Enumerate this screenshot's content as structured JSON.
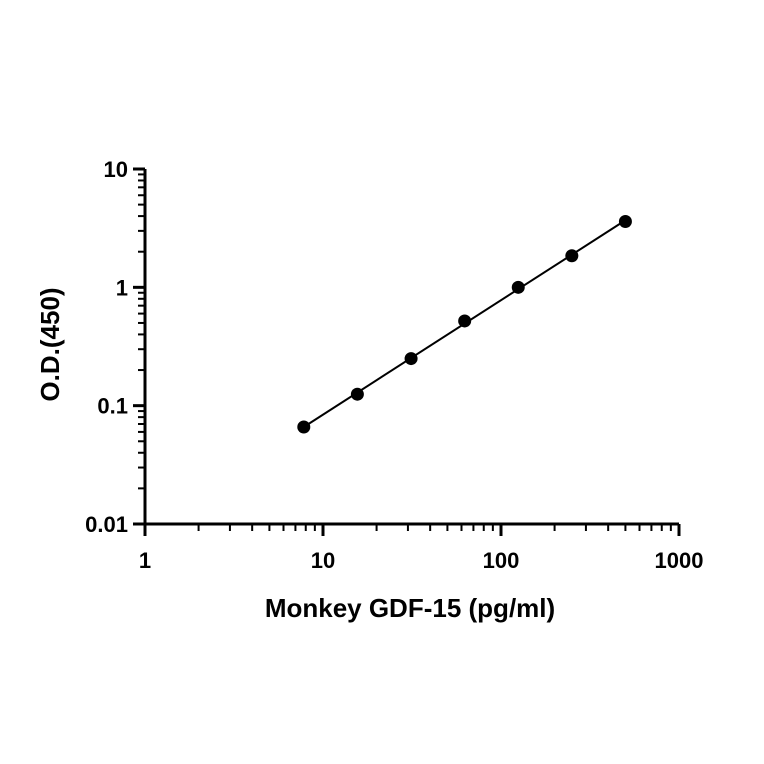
{
  "chart_data": {
    "type": "scatter",
    "title": "",
    "xlabel": "Monkey GDF-15 (pg/ml)",
    "ylabel": "O.D.(450)",
    "x_scale": "log",
    "y_scale": "log",
    "xlim": [
      1,
      1000
    ],
    "ylim": [
      0.01,
      10
    ],
    "x_ticks": [
      1,
      10,
      100,
      1000
    ],
    "x_tick_labels": [
      "1",
      "10",
      "100",
      "1000"
    ],
    "y_ticks": [
      0.01,
      0.1,
      1,
      10
    ],
    "y_tick_labels": [
      "0.01",
      "0.1",
      "1",
      "10"
    ],
    "grid": false,
    "legend": "none",
    "fit_line": true,
    "series": [
      {
        "x": [
          7.8,
          15.6,
          31.25,
          62.5,
          125,
          250,
          500
        ],
        "y": [
          0.066,
          0.125,
          0.25,
          0.52,
          1.0,
          1.85,
          3.6
        ]
      }
    ],
    "colors": {
      "points": "#000000",
      "line": "#000000",
      "axes": "#000000"
    }
  }
}
